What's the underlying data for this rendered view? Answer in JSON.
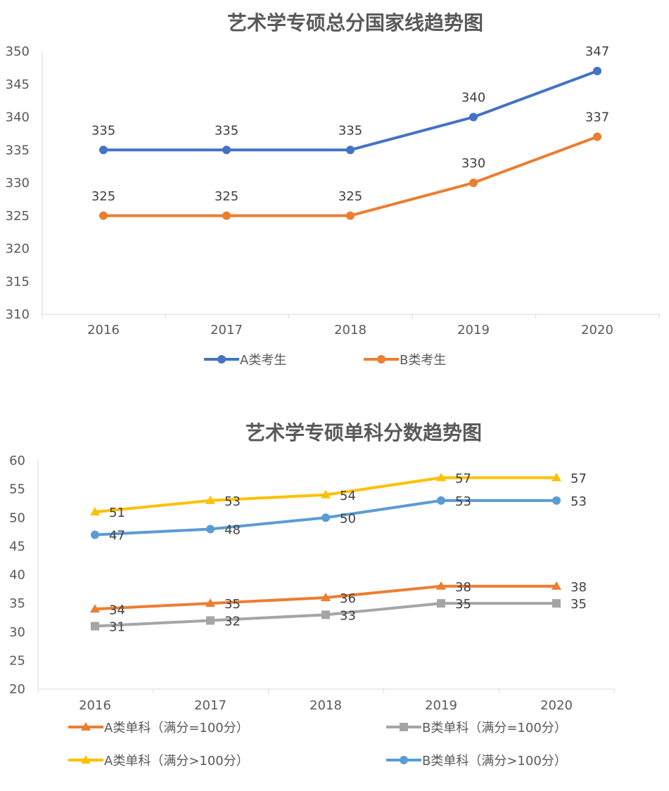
{
  "chart_data": [
    {
      "type": "line",
      "title": "艺术学专硕总分国家线趋势图",
      "categories": [
        "2016",
        "2017",
        "2018",
        "2019",
        "2020"
      ],
      "ylim": [
        310,
        350
      ],
      "yticks": [
        310,
        315,
        320,
        325,
        330,
        335,
        340,
        345,
        350
      ],
      "grid": false,
      "legend": "bottom",
      "series": [
        {
          "name": "A类考生",
          "values": [
            335,
            335,
            335,
            340,
            347
          ],
          "color": "#4472C4",
          "marker": "circle"
        },
        {
          "name": "B类考生",
          "values": [
            325,
            325,
            325,
            330,
            337
          ],
          "color": "#ED7D31",
          "marker": "circle"
        }
      ]
    },
    {
      "type": "line",
      "title": "艺术学专硕单科分数趋势图",
      "categories": [
        "2016",
        "2017",
        "2018",
        "2019",
        "2020"
      ],
      "ylim": [
        20,
        60
      ],
      "yticks": [
        20,
        25,
        30,
        35,
        40,
        45,
        50,
        55,
        60
      ],
      "grid": false,
      "legend": "bottom",
      "series": [
        {
          "name": "A类单科（满分=100分）",
          "values": [
            34,
            35,
            36,
            38,
            38
          ],
          "color": "#ED7D31",
          "marker": "triangle"
        },
        {
          "name": "B类单科（满分=100分）",
          "values": [
            31,
            32,
            33,
            35,
            35
          ],
          "color": "#A5A5A5",
          "marker": "square"
        },
        {
          "name": "A类单科（满分>100分）",
          "values": [
            51,
            53,
            54,
            57,
            57
          ],
          "color": "#FFC000",
          "marker": "triangle"
        },
        {
          "name": "B类单科（满分>100分）",
          "values": [
            47,
            48,
            50,
            53,
            53
          ],
          "color": "#5B9BD5",
          "marker": "circle"
        }
      ]
    }
  ]
}
